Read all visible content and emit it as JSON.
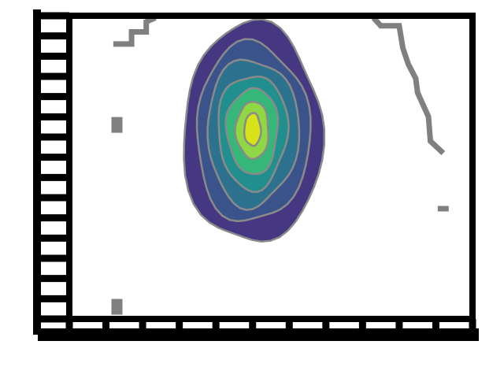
{
  "chart_data": {
    "type": "contour",
    "title": "",
    "xlabel": "",
    "ylabel": "",
    "xlim": [
      -8,
      14
    ],
    "ylim": [
      -2,
      5.5
    ],
    "x_ticks": [
      -8,
      -6,
      -4,
      -2,
      0,
      2,
      4,
      6,
      8,
      10,
      12,
      14
    ],
    "y_ticks": [
      -2,
      -1,
      0,
      1,
      2,
      3,
      4,
      5
    ],
    "x_tick_labels": [
      "",
      "",
      "",
      "",
      "",
      "",
      "",
      "",
      "",
      "",
      "",
      ""
    ],
    "y_tick_labels": [
      "",
      "",
      "",
      "",
      "",
      "",
      "",
      ""
    ],
    "grid": false,
    "legend": "none",
    "density": {
      "center": [
        2.0,
        2.7
      ],
      "levels": [
        {
          "level": 1,
          "rx": 3.8,
          "ry": 2.7,
          "color": "#453781"
        },
        {
          "level": 2,
          "rx": 3.1,
          "ry": 2.2,
          "color": "#3a538b"
        },
        {
          "level": 3,
          "rx": 2.5,
          "ry": 1.8,
          "color": "#2c728e"
        },
        {
          "level": 4,
          "rx": 1.9,
          "ry": 1.4,
          "color": "#218f8d"
        },
        {
          "level": 5,
          "rx": 1.4,
          "ry": 1.05,
          "color": "#35b779"
        },
        {
          "level": 6,
          "rx": 0.9,
          "ry": 0.7,
          "color": "#8fd744"
        },
        {
          "level": 7,
          "rx": 0.45,
          "ry": 0.4,
          "color": "#d8e219"
        }
      ],
      "contour_line_color": "#8a8a8a"
    },
    "outer_contour_points": [
      {
        "x": -5.6,
        "y": 4.8
      },
      {
        "x": -4.6,
        "y": 4.8
      },
      {
        "x": -4.6,
        "y": 5.1
      },
      {
        "x": -3.8,
        "y": 5.1
      },
      {
        "x": -3.8,
        "y": 5.35
      },
      {
        "x": -3.3,
        "y": 5.45
      },
      {
        "x": 8.6,
        "y": 5.45
      },
      {
        "x": 9.0,
        "y": 5.25
      },
      {
        "x": 10.0,
        "y": 5.25
      },
      {
        "x": 10.2,
        "y": 4.7
      },
      {
        "x": 10.5,
        "y": 4.3
      },
      {
        "x": 10.9,
        "y": 3.95
      },
      {
        "x": 11.0,
        "y": 3.6
      },
      {
        "x": 11.6,
        "y": 3.0
      },
      {
        "x": 11.7,
        "y": 2.4
      },
      {
        "x": 12.4,
        "y": 2.1
      },
      {
        "x": 12.4,
        "y": 0.6
      },
      {
        "x": -5.4,
        "y": 2.8
      },
      {
        "x": -5.4,
        "y": -1.7
      }
    ],
    "outer_contour_color": "#808080"
  }
}
